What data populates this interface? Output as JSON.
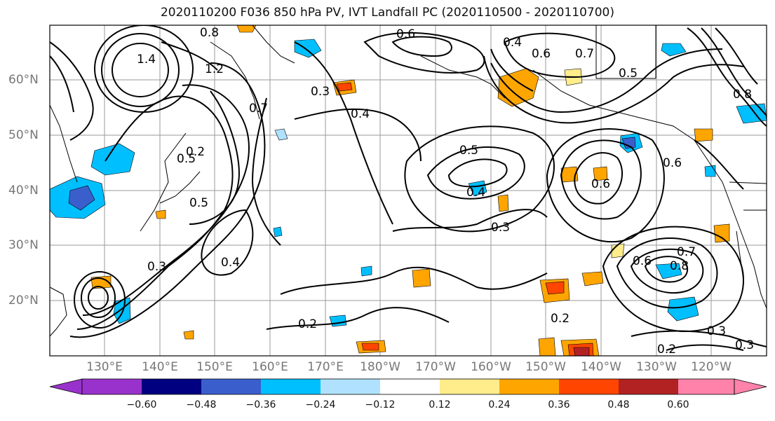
{
  "title": "2020110200 F036 850 hPa PV, IVT Landfall PC (2020110500 - 2020110700)",
  "lat_labels": [
    "60°N",
    "50°N",
    "40°N",
    "30°N",
    "20°N"
  ],
  "lon_labels": [
    "130°E",
    "140°E",
    "150°E",
    "160°E",
    "170°E",
    "180°W",
    "170°W",
    "160°W",
    "150°W",
    "140°W",
    "130°W",
    "120°W"
  ],
  "colorbar": {
    "ticks": [
      "−0.60",
      "−0.48",
      "−0.36",
      "−0.24",
      "−0.12",
      "0.12",
      "0.24",
      "0.36",
      "0.48",
      "0.60"
    ],
    "colors": [
      "#9932CC",
      "#000080",
      "#3A5FCD",
      "#00BFFF",
      "#B0E2FF",
      "#FFFFFF",
      "#FFEC8B",
      "#FFA500",
      "#FF4500",
      "#B22222",
      "#FF82AB"
    ]
  },
  "contour_labels": [
    "0.8",
    "1.4",
    "1.2",
    "0.5",
    "0.7",
    "0.3",
    "0.4",
    "0.2",
    "0.6",
    "0.2",
    "0.3",
    "0.4",
    "0.5",
    "0.6",
    "0.7",
    "0.8",
    "0.4",
    "0.5",
    "0.3",
    "0.2",
    "0.6",
    "0.5",
    "0.6",
    "0.3",
    "0.2",
    "0.3",
    "0.7",
    "0.8",
    "0.4",
    "0.6"
  ]
}
